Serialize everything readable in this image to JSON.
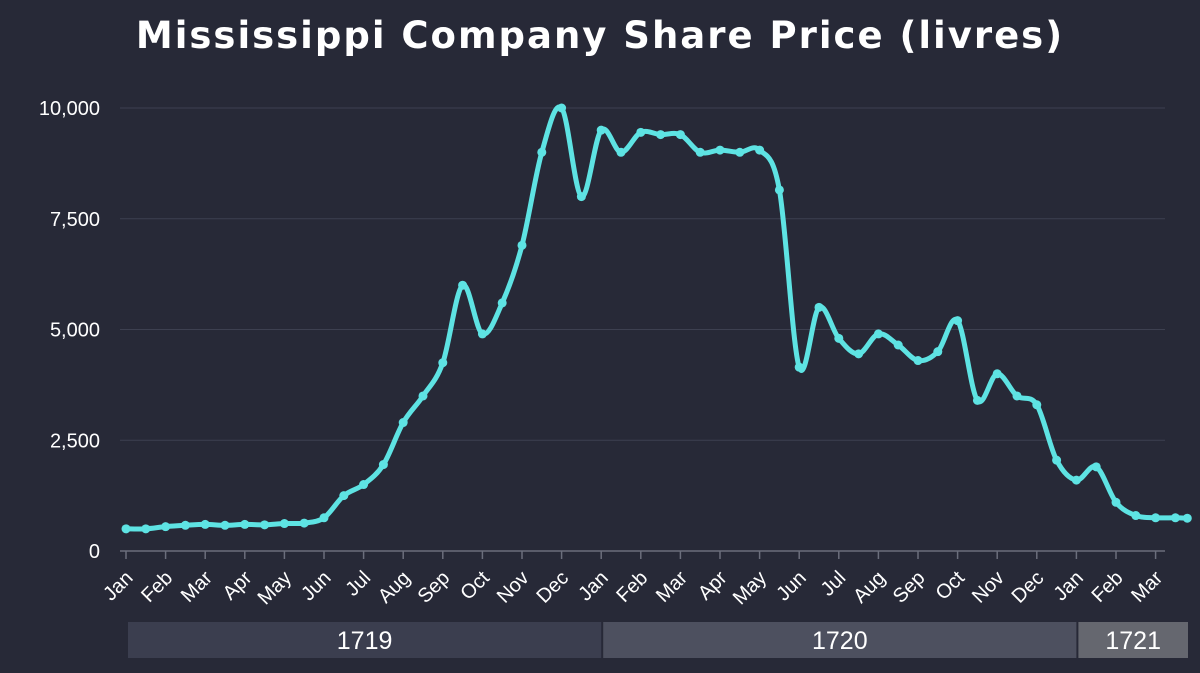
{
  "colors": {
    "background": "#272937",
    "line": "#5ee3e3",
    "grid": "#3d4050",
    "text": "#ffffff",
    "band_1719": "#3b3e4f",
    "band_1720": "#4d505f",
    "band_1721": "#65676f"
  },
  "chart_data": {
    "type": "line",
    "title": "Mississippi Company Share Price (livres)",
    "xlabel": "",
    "ylabel": "",
    "ylim": [
      0,
      10000
    ],
    "yticks": [
      0,
      2500,
      5000,
      7500,
      10000
    ],
    "ytick_labels": [
      "0",
      "2,500",
      "5,000",
      "7,500",
      "10,000"
    ],
    "grid": true,
    "legend": "none",
    "month_ticks": [
      "Jan",
      "Feb",
      "Mar",
      "Apr",
      "May",
      "Jun",
      "Jul",
      "Aug",
      "Sep",
      "Oct",
      "Nov",
      "Dec",
      "Jan",
      "Feb",
      "Mar",
      "Apr",
      "May",
      "Jun",
      "Jul",
      "Aug",
      "Sep",
      "Oct",
      "Nov",
      "Dec",
      "Jan",
      "Feb",
      "Mar"
    ],
    "year_bands": [
      {
        "label": "1719",
        "start_month": 0,
        "end_month": 12
      },
      {
        "label": "1720",
        "start_month": 12,
        "end_month": 24
      },
      {
        "label": "1721",
        "start_month": 24,
        "end_month": 26.8
      }
    ],
    "series": [
      {
        "x_months": [
          0,
          0.5,
          1,
          1.5,
          2,
          2.5,
          3,
          3.5,
          4,
          4.5,
          5,
          5.5,
          6,
          6.5,
          7,
          7.5,
          8,
          8.5,
          9,
          9.5,
          10,
          10.5,
          11,
          11.5,
          12,
          12.5,
          13,
          13.5,
          14,
          14.5,
          15,
          15.5,
          16,
          16.5,
          17,
          17.5,
          18,
          18.5,
          19,
          19.5,
          20,
          20.5,
          21,
          21.5,
          22,
          22.5,
          23,
          23.5,
          24,
          24.5,
          25,
          25.5,
          26,
          26.5,
          26.8
        ],
        "values": [
          500,
          500,
          550,
          580,
          600,
          580,
          600,
          590,
          620,
          630,
          750,
          1250,
          1500,
          1950,
          2900,
          3500,
          4250,
          6000,
          4900,
          5600,
          6900,
          9000,
          10000,
          8000,
          9500,
          9000,
          9450,
          9400,
          9400,
          9000,
          9050,
          9000,
          9050,
          8150,
          4150,
          5500,
          4800,
          4450,
          4900,
          4650,
          4300,
          4500,
          5200,
          3400,
          4000,
          3500,
          3300,
          2050,
          1600,
          1900,
          1100,
          800,
          750,
          750,
          740
        ]
      }
    ]
  }
}
